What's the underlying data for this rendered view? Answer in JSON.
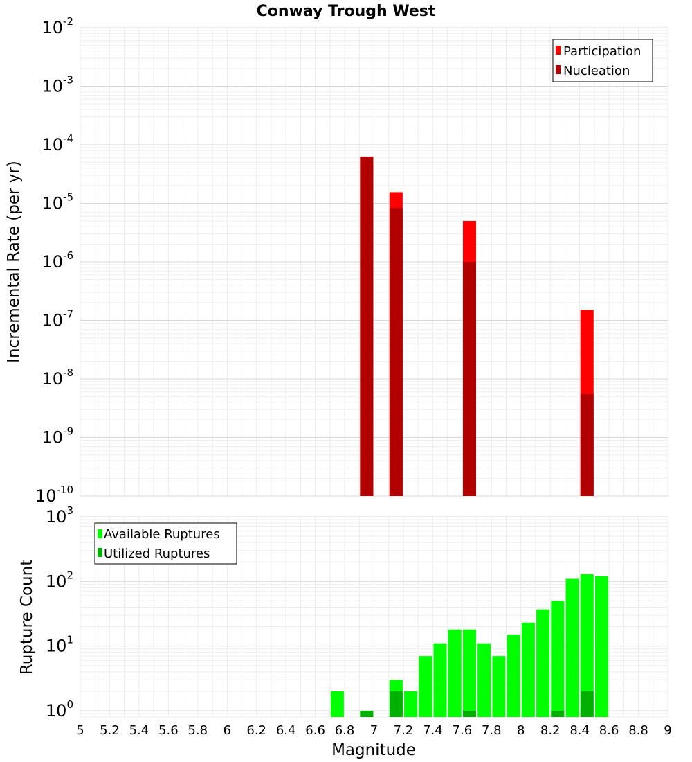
{
  "chart_data": [
    {
      "type": "bar",
      "title": "Conway Trough West",
      "xlabel": "",
      "ylabel": "Incremental Rate (per yr)",
      "yscale": "log",
      "xlim": [
        5,
        9
      ],
      "ylim": [
        1e-10,
        0.01
      ],
      "ytick_exponents": [
        "-10",
        "-9",
        "-8",
        "-7",
        "-6",
        "-5",
        "-4",
        "-3",
        "-2"
      ],
      "legend": {
        "position": "top-right",
        "entries": [
          "Participation",
          "Nucleation"
        ]
      },
      "colors": {
        "Participation": "#ff0000",
        "Nucleation": "#b00000"
      },
      "series": [
        {
          "name": "Participation",
          "x": [
            6.95,
            7.15,
            7.65,
            8.45
          ],
          "values": [
            6.3e-05,
            1.55e-05,
            5e-06,
            1.5e-07
          ]
        },
        {
          "name": "Nucleation",
          "x": [
            6.95,
            7.15,
            7.65,
            8.45
          ],
          "values": [
            6.3e-05,
            8.3e-06,
            1e-06,
            5.5e-09
          ]
        }
      ]
    },
    {
      "type": "bar",
      "title": "",
      "xlabel": "Magnitude",
      "ylabel": "Rupture Count",
      "yscale": "log",
      "xlim": [
        5,
        9
      ],
      "ylim": [
        0.8,
        1000
      ],
      "ytick_exponents": [
        "0",
        "1",
        "2",
        "3"
      ],
      "x_ticks": [
        "5",
        "5.2",
        "5.4",
        "5.6",
        "5.8",
        "6",
        "6.2",
        "6.4",
        "6.6",
        "6.8",
        "7",
        "7.2",
        "7.4",
        "7.6",
        "7.8",
        "8",
        "8.2",
        "8.4",
        "8.6",
        "8.8",
        "9"
      ],
      "legend": {
        "position": "top-left",
        "entries": [
          "Available Ruptures",
          "Utilized Ruptures"
        ]
      },
      "colors": {
        "Available Ruptures": "#00ff00",
        "Utilized Ruptures": "#00b000"
      },
      "series": [
        {
          "name": "Available Ruptures",
          "x": [
            6.75,
            6.95,
            7.15,
            7.25,
            7.35,
            7.45,
            7.55,
            7.65,
            7.75,
            7.85,
            7.95,
            8.05,
            8.15,
            8.25,
            8.35,
            8.45,
            8.55
          ],
          "values": [
            2,
            1,
            3,
            2,
            7,
            11,
            18,
            18,
            11,
            7,
            15,
            23,
            37,
            50,
            110,
            130,
            120
          ]
        },
        {
          "name": "Utilized Ruptures",
          "x": [
            6.95,
            7.15,
            7.65,
            8.25,
            8.45
          ],
          "values": [
            1,
            2,
            1,
            1,
            2
          ]
        }
      ]
    }
  ]
}
